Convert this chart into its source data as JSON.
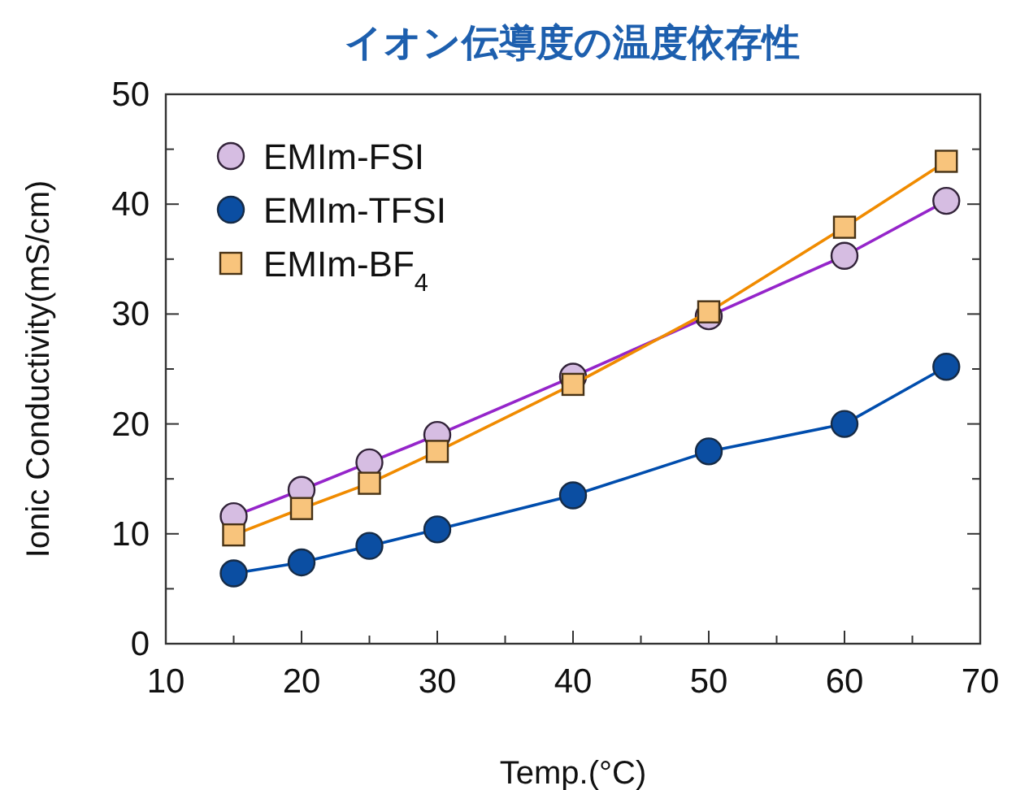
{
  "chart_data": {
    "type": "line",
    "title": "イオン伝導度の温度依存性",
    "xlabel": "Temp.(°C)",
    "ylabel": "Ionic Conductivity(mS/cm)",
    "xlim": [
      10,
      70
    ],
    "xticks": [
      10,
      {
        "value": 15,
        "label": null
      },
      20,
      {
        "value": 25,
        "label": null
      },
      30,
      {
        "value": 35,
        "label": null
      },
      40,
      {
        "value": 45,
        "label": null
      },
      50,
      {
        "value": 55,
        "label": null
      },
      60,
      {
        "value": 65,
        "label": null
      },
      70
    ],
    "ylim": [
      0,
      50
    ],
    "yticks": [
      0,
      {
        "value": 5,
        "label": null
      },
      10,
      {
        "value": 15,
        "label": null
      },
      20,
      {
        "value": 25,
        "label": null
      },
      30,
      {
        "value": 35,
        "label": null
      },
      40,
      {
        "value": 45,
        "label": null
      },
      50
    ],
    "legend": "top left",
    "line_style": "solid",
    "series": [
      {
        "name": "EMIm-FSI",
        "color": "#d6bde2",
        "marker": "circle",
        "x": [
          15,
          20,
          25,
          30,
          40,
          50,
          60,
          67.5
        ],
        "values": [
          11.6,
          14.0,
          16.5,
          19.0,
          24.3,
          29.8,
          35.3,
          40.3
        ]
      },
      {
        "name": "EMIm-TFSI",
        "color": "#0b4ea2",
        "marker": "circle",
        "x": [
          15,
          20,
          25,
          30,
          40,
          50,
          60,
          67.5
        ],
        "values": [
          6.4,
          7.4,
          8.9,
          10.4,
          13.5,
          17.5,
          20.0,
          25.2
        ]
      },
      {
        "name": "EMIm-BF$_{4}$",
        "color": "#f8c47c",
        "marker": "square",
        "x": [
          15,
          20,
          25,
          30,
          40,
          50,
          60,
          67.5
        ],
        "values": [
          9.9,
          12.3,
          14.6,
          17.5,
          23.6,
          30.2,
          37.9,
          43.9
        ]
      }
    ]
  }
}
